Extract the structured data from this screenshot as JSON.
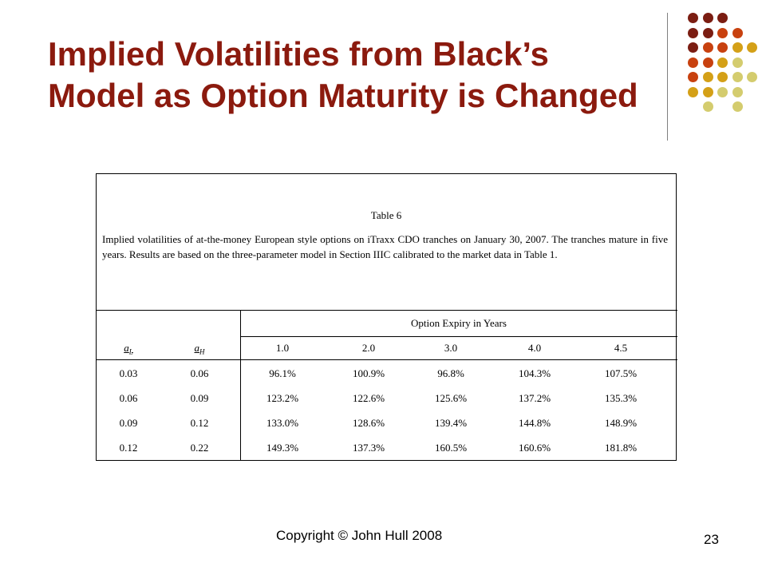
{
  "slide": {
    "title_line1": "Implied Volatilities from Black’s",
    "title_line2": "Model as Option Maturity is Changed",
    "footer": "Copyright © John Hull  2008",
    "page_number": "23"
  },
  "table": {
    "caption_title": "Table 6",
    "caption_text": "Implied volatilities of at-the-money European style options on iTraxx CDO tranches on January 30, 2007. The tranches mature in five years. Results are based on the three-parameter model in Section IIIC calibrated to the market data in Table 1.",
    "group_header": "Option Expiry in Years",
    "col_aL": "a",
    "col_aL_sub": "L",
    "col_aH": "a",
    "col_aH_sub": "H",
    "expiries": [
      "1.0",
      "2.0",
      "3.0",
      "4.0",
      "4.5"
    ],
    "rows": [
      {
        "aL": "0.03",
        "aH": "0.06",
        "vals": [
          "96.1%",
          "100.9%",
          "96.8%",
          "104.3%",
          "107.5%"
        ]
      },
      {
        "aL": "0.06",
        "aH": "0.09",
        "vals": [
          "123.2%",
          "122.6%",
          "125.6%",
          "137.2%",
          "135.3%"
        ]
      },
      {
        "aL": "0.09",
        "aH": "0.12",
        "vals": [
          "133.0%",
          "128.6%",
          "139.4%",
          "144.8%",
          "148.9%"
        ]
      },
      {
        "aL": "0.12",
        "aH": "0.22",
        "vals": [
          "149.3%",
          "137.3%",
          "160.5%",
          "160.6%",
          "181.8%"
        ]
      }
    ]
  },
  "colors": {
    "title": "#8b1a0e",
    "dot_dark_red": "#7b1d12",
    "dot_orange": "#c8410f",
    "dot_gold": "#d4a017",
    "dot_khaki": "#d4cc6e"
  }
}
